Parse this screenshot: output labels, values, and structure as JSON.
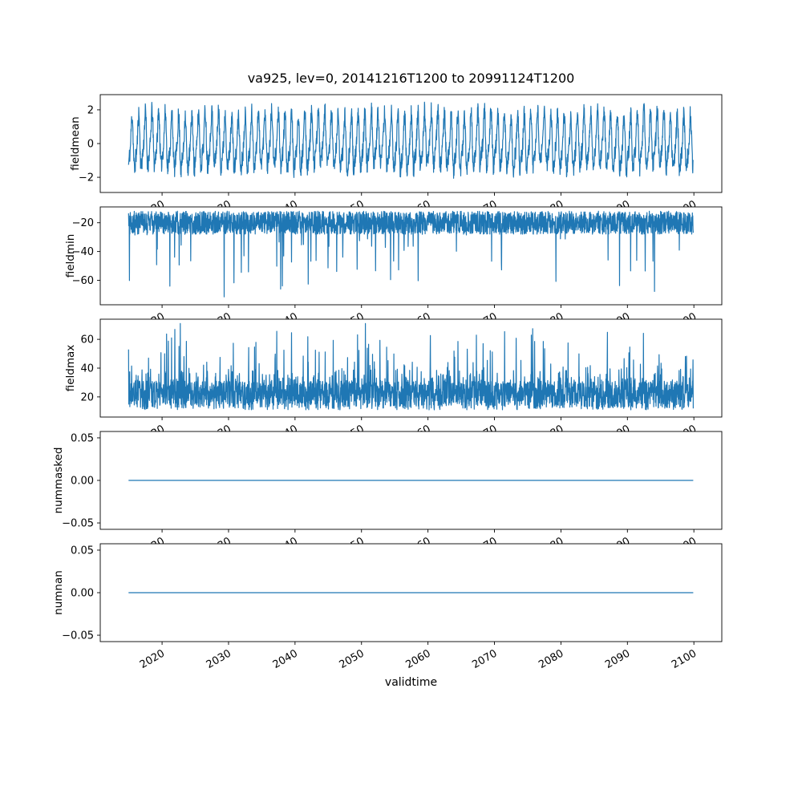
{
  "figure": {
    "title": "va925, lev=0, 20141216T1200 to 20991124T1200",
    "xlabel": "validtime",
    "background": "#ffffff",
    "line_color": "#1f77b4",
    "axis_color": "#000000",
    "xlim": [
      2010.7,
      2104.2
    ],
    "xticks": [
      {
        "v": 2020,
        "label": "2020"
      },
      {
        "v": 2030,
        "label": "2030"
      },
      {
        "v": 2040,
        "label": "2040"
      },
      {
        "v": 2050,
        "label": "2050"
      },
      {
        "v": 2060,
        "label": "2060"
      },
      {
        "v": 2070,
        "label": "2070"
      },
      {
        "v": 2080,
        "label": "2080"
      },
      {
        "v": 2090,
        "label": "2090"
      },
      {
        "v": 2100,
        "label": "2100"
      }
    ]
  },
  "chart_data": [
    {
      "type": "line",
      "name": "fieldmean",
      "ylabel": "fieldmean",
      "ylim": [
        -2.9,
        2.9
      ],
      "yticks": [
        {
          "v": 2,
          "label": "2"
        },
        {
          "v": 0,
          "label": "0"
        },
        {
          "v": -2,
          "label": "−2"
        }
      ],
      "series": {
        "kind": "seasonal-noise",
        "x_start": 2014.96,
        "x_end": 2099.9,
        "n": 2600,
        "seed": 11,
        "baseline": 0,
        "annual_amplitude": 1.45,
        "semiannual_amplitude": 0.45,
        "slow_amplitude": 0.15,
        "slow_period": 8.3,
        "noise": 0.55,
        "approx_range": [
          -2.6,
          2.6
        ]
      }
    },
    {
      "type": "line",
      "name": "fieldmin",
      "ylabel": "fieldmin",
      "ylim": [
        -77,
        -9
      ],
      "yticks": [
        {
          "v": -20,
          "label": "−20"
        },
        {
          "v": -40,
          "label": "−40"
        },
        {
          "v": -60,
          "label": "−60"
        }
      ],
      "series": {
        "kind": "band-noise-downward-spikes",
        "x_start": 2014.96,
        "x_end": 2099.9,
        "n": 2600,
        "seed": 23,
        "band": [
          -28,
          -12
        ],
        "spike_prob": 0.02,
        "spike_min_extra": 8,
        "spike_max_extra": 46,
        "floor": -75,
        "approx_range": [
          -75,
          -12
        ]
      }
    },
    {
      "type": "line",
      "name": "fieldmax",
      "ylabel": "fieldmax",
      "ylim": [
        6,
        74
      ],
      "yticks": [
        {
          "v": 60,
          "label": "60"
        },
        {
          "v": 40,
          "label": "40"
        },
        {
          "v": 20,
          "label": "20"
        }
      ],
      "series": {
        "kind": "band-noise-upward-spikes",
        "x_start": 2014.96,
        "x_end": 2099.9,
        "n": 2600,
        "seed": 37,
        "band": [
          11,
          31
        ],
        "mid_spike_prob": 0.25,
        "mid_spike_max": 12,
        "spike_prob": 0.05,
        "spike_min_extra": 8,
        "spike_max_extra": 40,
        "cap": 71,
        "approx_range": [
          10,
          71
        ]
      }
    },
    {
      "type": "line",
      "name": "nummasked",
      "ylabel": "nummasked",
      "ylim": [
        -0.0575,
        0.0575
      ],
      "yticks": [
        {
          "v": 0.05,
          "label": "0.05"
        },
        {
          "v": 0.0,
          "label": "0.00"
        },
        {
          "v": -0.05,
          "label": "−0.05"
        }
      ],
      "series": {
        "kind": "constant",
        "x_start": 2014.96,
        "x_end": 2099.9,
        "value": 0
      }
    },
    {
      "type": "line",
      "name": "numnan",
      "ylabel": "numnan",
      "ylim": [
        -0.0575,
        0.0575
      ],
      "yticks": [
        {
          "v": 0.05,
          "label": "0.05"
        },
        {
          "v": 0.0,
          "label": "0.00"
        },
        {
          "v": -0.05,
          "label": "−0.05"
        }
      ],
      "series": {
        "kind": "constant",
        "x_start": 2014.96,
        "x_end": 2099.9,
        "value": 0
      }
    }
  ]
}
